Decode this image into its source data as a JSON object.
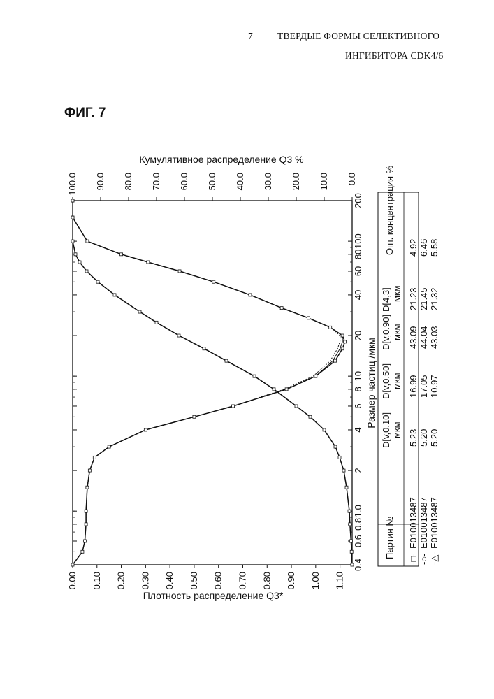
{
  "header": {
    "page_number": "7",
    "title_line1": "ТВЕРДЫЕ ФОРМЫ СЕЛЕКТИВНОГО",
    "title_line2": "ИНГИБИТОРА CDK4/6"
  },
  "figure_label": "ФИГ. 7",
  "chart_data": {
    "type": "line",
    "orientation": "rotated 90 degrees counterclockwise",
    "title": "",
    "xlabel": "Размер частиц /мкм",
    "x_scale": "log",
    "xlim": [
      0.4,
      200
    ],
    "x_tick_labels": [
      "0.4",
      "0.6",
      "0.8",
      "1.0",
      "2",
      "4",
      "6",
      "8",
      "10",
      "20",
      "40",
      "60",
      "80",
      "100",
      "200"
    ],
    "y_left_label": "Плотность распределение Q3*",
    "y_left_lim": [
      0,
      1.15
    ],
    "y_left_tick_labels": [
      "0.00",
      "0.10",
      "0.20",
      "0.30",
      "0.40",
      "0.50",
      "0.60",
      "0.70",
      "0.80",
      "0.90",
      "1.00",
      "1.10"
    ],
    "y_right_label": "Кумулятивное распределение Q3 %",
    "y_right_lim": [
      0,
      100
    ],
    "y_right_tick_labels": [
      "0.0",
      "10.0",
      "20.0",
      "30.0",
      "40.0",
      "50.0",
      "60.0",
      "70.0",
      "80.0",
      "90.0",
      "100.0"
    ],
    "density_series": [
      {
        "name": "E010013487 (□)",
        "x": [
          0.4,
          0.5,
          0.6,
          0.8,
          1.0,
          1.5,
          2.0,
          2.5,
          3.0,
          4.0,
          5.0,
          6.0,
          8.0,
          10.0,
          13.0,
          16.0,
          18.0,
          20.0,
          23.0,
          27.0,
          32.0,
          40.0,
          50.0,
          60.0,
          70.0,
          80.0,
          100.0,
          150.0,
          200.0
        ],
        "y": [
          0.0,
          0.04,
          0.05,
          0.055,
          0.055,
          0.06,
          0.07,
          0.09,
          0.15,
          0.3,
          0.5,
          0.66,
          0.88,
          1.0,
          1.08,
          1.11,
          1.12,
          1.11,
          1.06,
          0.97,
          0.86,
          0.73,
          0.58,
          0.44,
          0.31,
          0.2,
          0.06,
          0.0,
          0.0
        ]
      },
      {
        "name": "E010013487 (○)",
        "x": [
          0.4,
          0.5,
          0.6,
          0.8,
          1.0,
          1.5,
          2.0,
          2.5,
          3.0,
          4.0,
          5.0,
          6.0,
          8.0,
          10.0,
          13.0,
          16.0,
          18.0,
          20.0,
          23.0,
          27.0,
          32.0,
          40.0,
          50.0,
          60.0,
          70.0,
          80.0,
          100.0,
          150.0,
          200.0
        ],
        "y": [
          0.0,
          0.04,
          0.05,
          0.055,
          0.055,
          0.06,
          0.07,
          0.09,
          0.15,
          0.3,
          0.5,
          0.66,
          0.87,
          0.99,
          1.06,
          1.09,
          1.1,
          1.1,
          1.06,
          0.97,
          0.86,
          0.73,
          0.58,
          0.44,
          0.31,
          0.2,
          0.06,
          0.0,
          0.0
        ]
      },
      {
        "name": "E010013487 (△)",
        "x": [
          0.4,
          0.5,
          0.6,
          0.8,
          1.0,
          1.5,
          2.0,
          2.5,
          3.0,
          4.0,
          5.0,
          6.0,
          8.0,
          10.0,
          13.0,
          16.0,
          18.0,
          20.0,
          23.0,
          27.0,
          32.0,
          40.0,
          50.0,
          60.0,
          70.0,
          80.0,
          100.0,
          150.0,
          200.0
        ],
        "y": [
          0.0,
          0.04,
          0.05,
          0.055,
          0.055,
          0.06,
          0.07,
          0.09,
          0.15,
          0.3,
          0.5,
          0.66,
          0.88,
          1.0,
          1.07,
          1.1,
          1.11,
          1.11,
          1.06,
          0.97,
          0.86,
          0.73,
          0.58,
          0.44,
          0.31,
          0.2,
          0.06,
          0.0,
          0.0
        ]
      }
    ],
    "cumulative_series": [
      {
        "name": "E010013487 (□)",
        "x": [
          0.4,
          0.5,
          0.6,
          0.8,
          1.0,
          1.5,
          2.0,
          2.5,
          3.0,
          4.0,
          5.0,
          6.0,
          8.0,
          10.0,
          13.0,
          16.0,
          20.0,
          25.0,
          30.0,
          40.0,
          50.0,
          60.0,
          70.0,
          80.0,
          100.0,
          150.0,
          200.0
        ],
        "y": [
          0.0,
          0.2,
          0.4,
          0.8,
          1.0,
          2.0,
          3.0,
          4.5,
          6.0,
          10.0,
          15.0,
          20.0,
          28.0,
          35.0,
          45.0,
          53.0,
          62.0,
          70.0,
          76.0,
          85.0,
          91.0,
          95.0,
          97.5,
          99.0,
          100.0,
          100.0,
          100.0
        ]
      },
      {
        "name": "E010013487 (○)",
        "x": [
          0.4,
          0.5,
          0.6,
          0.8,
          1.0,
          1.5,
          2.0,
          2.5,
          3.0,
          4.0,
          5.0,
          6.0,
          8.0,
          10.0,
          13.0,
          16.0,
          20.0,
          25.0,
          30.0,
          40.0,
          50.0,
          60.0,
          70.0,
          80.0,
          100.0,
          150.0,
          200.0
        ],
        "y": [
          0.0,
          0.2,
          0.4,
          0.8,
          1.0,
          2.0,
          3.0,
          4.5,
          6.0,
          10.0,
          15.0,
          20.0,
          28.0,
          35.0,
          45.0,
          53.0,
          62.0,
          70.0,
          76.0,
          85.0,
          91.0,
          95.0,
          97.5,
          99.0,
          100.0,
          100.0,
          100.0
        ]
      },
      {
        "name": "E010013487 (△)",
        "x": [
          0.4,
          0.5,
          0.6,
          0.8,
          1.0,
          1.5,
          2.0,
          2.5,
          3.0,
          4.0,
          5.0,
          6.0,
          8.0,
          10.0,
          13.0,
          16.0,
          20.0,
          25.0,
          30.0,
          40.0,
          50.0,
          60.0,
          70.0,
          80.0,
          100.0,
          150.0,
          200.0
        ],
        "y": [
          0.0,
          0.2,
          0.4,
          0.8,
          1.0,
          2.0,
          3.0,
          4.5,
          6.0,
          10.0,
          15.0,
          20.0,
          28.0,
          35.0,
          45.0,
          53.0,
          62.0,
          70.0,
          76.0,
          85.0,
          91.0,
          95.0,
          97.5,
          99.0,
          100.0,
          100.0,
          100.0
        ]
      }
    ],
    "legend_table": {
      "headers": [
        "Партия №",
        "D[v,0.10] мкм",
        "D[v,0.50] мкм",
        "D[v,0.90] мкм",
        "D[4,3] мкм",
        "Опт. концентрация %"
      ],
      "rows": [
        {
          "marker": "-□-",
          "batch": "E010013487",
          "d10": "5.23",
          "d50": "16.99",
          "d90": "43.09",
          "d43": "21.23",
          "conc": "4.92"
        },
        {
          "marker": "-○-",
          "batch": "E010013487",
          "d10": "5.20",
          "d50": "17.05",
          "d90": "44.04",
          "d43": "21.45",
          "conc": "6.46"
        },
        {
          "marker": "-△-",
          "batch": "E010013487",
          "d10": "5.20",
          "d50": "10.97",
          "d90": "43.03",
          "d43": "21.32",
          "conc": "5.58"
        }
      ]
    }
  }
}
